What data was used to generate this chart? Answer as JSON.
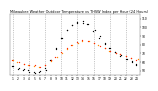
{
  "title": "Milwaukee Weather Outdoor Temperature vs THSW Index per Hour (24 Hours)",
  "hours": [
    1,
    2,
    3,
    4,
    5,
    6,
    7,
    8,
    9,
    10,
    11,
    12,
    13,
    14,
    15,
    16,
    17,
    18,
    19,
    20,
    21,
    22,
    23,
    24
  ],
  "temp_values": [
    62,
    60,
    58,
    57,
    56,
    55,
    57,
    62,
    66,
    71,
    76,
    80,
    83,
    85,
    84,
    82,
    79,
    76,
    73,
    71,
    69,
    67,
    65,
    63
  ],
  "thsw_values": [
    55,
    53,
    51,
    50,
    49,
    48,
    52,
    62,
    75,
    88,
    97,
    102,
    105,
    107,
    103,
    96,
    89,
    82,
    76,
    72,
    67,
    63,
    60,
    57
  ],
  "temp_color": "#ff2200",
  "thsw_color": "#000000",
  "orange_color": "#ff8800",
  "background_color": "#ffffff",
  "grid_color": "#999999",
  "ylim": [
    45,
    115
  ],
  "xlim": [
    0.5,
    24.5
  ],
  "ytick_values": [
    50,
    60,
    70,
    80,
    90,
    100,
    110
  ],
  "ytick_labels": [
    "50",
    "60",
    "70",
    "80",
    "90",
    "100",
    "110"
  ],
  "vgrid_positions": [
    1,
    4,
    7,
    10,
    13,
    16,
    19,
    22
  ],
  "xtick_labels": [
    "1",
    "2",
    "3",
    "4",
    "5",
    "6",
    "7",
    "8",
    "9",
    "10",
    "11",
    "12",
    "13",
    "14",
    "15",
    "16",
    "17",
    "18",
    "19",
    "20",
    "21",
    "22",
    "23",
    "24"
  ]
}
